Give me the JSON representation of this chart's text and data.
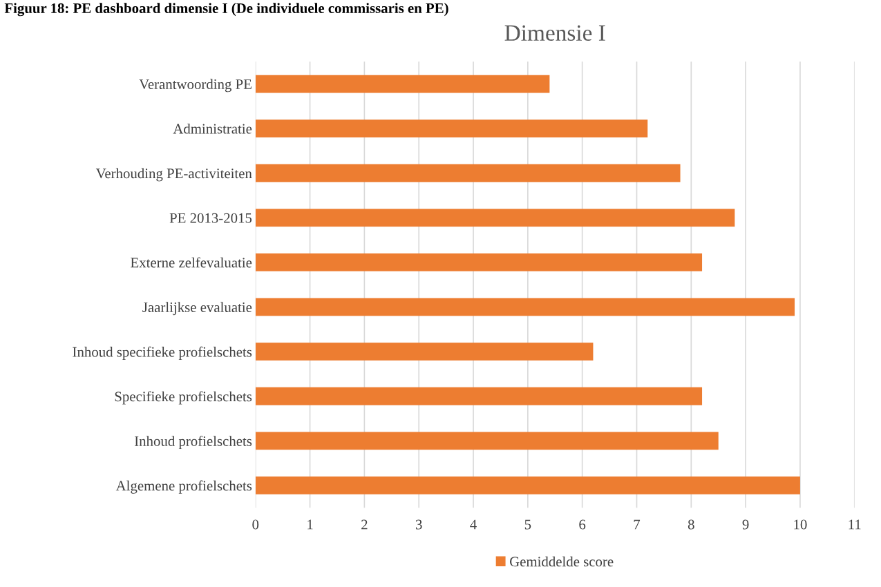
{
  "chart_data": {
    "type": "bar",
    "orientation": "horizontal",
    "title": "Dimensie I",
    "annotations": [
      "Figuur 18: PE dashboard dimensie I (De individuele commissaris en PE)"
    ],
    "categories": [
      "Verantwoording PE",
      "Administratie",
      "Verhouding PE-activiteiten",
      "PE 2013-2015",
      "Externe zelfevaluatie",
      "Jaarlijkse evaluatie",
      "Inhoud specifieke profielschets",
      "Specifieke profielschets",
      "Inhoud profielschets",
      "Algemene profielschets"
    ],
    "series": [
      {
        "name": "Gemiddelde score",
        "color": "#ed7d31",
        "values": [
          5.4,
          7.2,
          7.8,
          8.8,
          8.2,
          9.9,
          6.2,
          8.2,
          8.5,
          10.0
        ]
      }
    ],
    "xlim": [
      0,
      11
    ],
    "xticks": [
      0,
      1,
      2,
      3,
      4,
      5,
      6,
      7,
      8,
      9,
      10,
      11
    ],
    "grid": "x",
    "legend": "bottom"
  }
}
